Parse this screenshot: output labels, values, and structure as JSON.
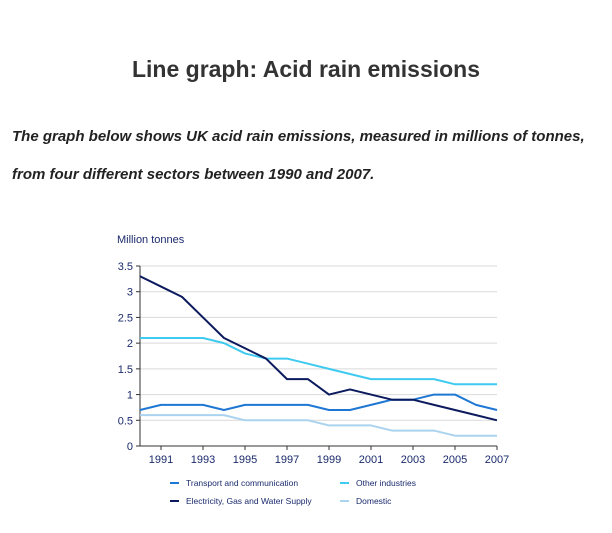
{
  "page": {
    "title": "Line graph: Acid rain emissions",
    "description": "The graph below shows UK acid rain emissions, measured in millions of tonnes, from four different sectors between 1990 and 2007."
  },
  "chart_data": {
    "type": "line",
    "title": "",
    "xlabel": "",
    "ylabel": "Million tonnes",
    "x": [
      1990,
      1991,
      1992,
      1993,
      1994,
      1995,
      1996,
      1997,
      1998,
      1999,
      2000,
      2001,
      2002,
      2003,
      2004,
      2005,
      2006,
      2007
    ],
    "xlim": [
      1990,
      2007
    ],
    "ylim": [
      0,
      3.5
    ],
    "x_ticks": [
      "1991",
      "1993",
      "1995",
      "1997",
      "1999",
      "2001",
      "2003",
      "2005",
      "2007"
    ],
    "y_ticks": [
      "0",
      "0.5",
      "1",
      "1.5",
      "2",
      "2.5",
      "3",
      "3.5"
    ],
    "grid": true,
    "legend_position": "bottom",
    "series": [
      {
        "name": "Transport and communication",
        "color": "#1f77d4",
        "values": [
          0.7,
          0.8,
          0.8,
          0.8,
          0.7,
          0.8,
          0.8,
          0.8,
          0.8,
          0.7,
          0.7,
          0.8,
          0.9,
          0.9,
          1.0,
          1.0,
          0.8,
          0.7
        ]
      },
      {
        "name": "Other industries",
        "color": "#3fcaf0",
        "values": [
          2.1,
          2.1,
          2.1,
          2.1,
          2.0,
          1.8,
          1.7,
          1.7,
          1.6,
          1.5,
          1.4,
          1.3,
          1.3,
          1.3,
          1.3,
          1.2,
          1.2,
          1.2
        ]
      },
      {
        "name": "Electricity, Gas and Water Supply",
        "color": "#0c1a5e",
        "values": [
          3.3,
          3.1,
          2.9,
          2.5,
          2.1,
          1.9,
          1.7,
          1.3,
          1.3,
          1.0,
          1.1,
          1.0,
          0.9,
          0.9,
          0.8,
          0.7,
          0.6,
          0.5
        ]
      },
      {
        "name": "Domestic",
        "color": "#a9d3ef",
        "values": [
          0.6,
          0.6,
          0.6,
          0.6,
          0.6,
          0.5,
          0.5,
          0.5,
          0.5,
          0.4,
          0.4,
          0.4,
          0.3,
          0.3,
          0.3,
          0.2,
          0.2,
          0.2
        ]
      }
    ],
    "legend_order": [
      0,
      1,
      2,
      3
    ]
  }
}
